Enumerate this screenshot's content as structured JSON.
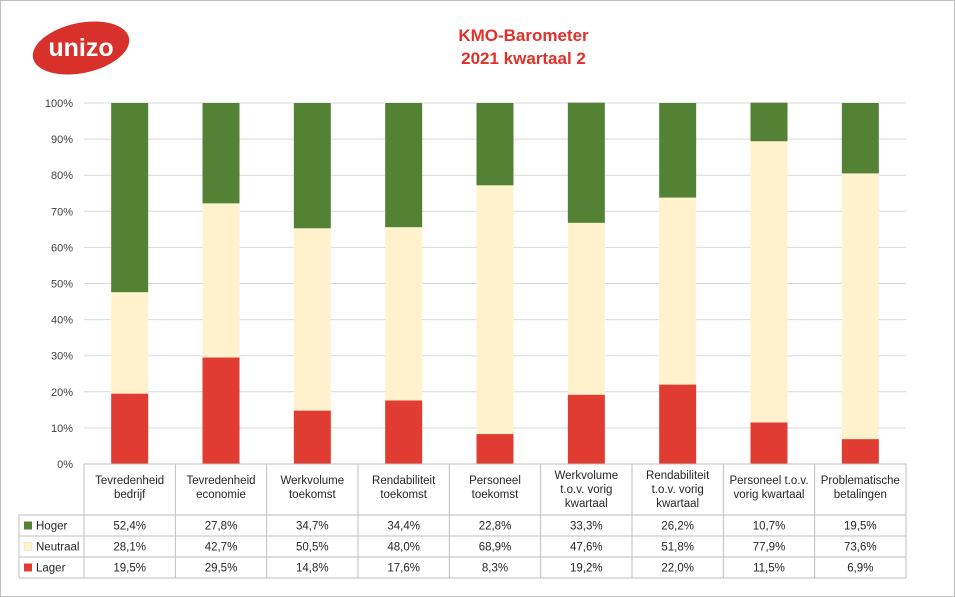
{
  "logo": {
    "text": "unizo",
    "color": "#d8302a"
  },
  "title": {
    "line1": "KMO-Barometer",
    "line2": "2021 kwartaal 2"
  },
  "chart_data": {
    "type": "bar",
    "stacked": true,
    "percent": true,
    "title": "KMO-Barometer 2021 kwartaal 2",
    "ylim": [
      0,
      100
    ],
    "yticks": [
      "0%",
      "10%",
      "20%",
      "30%",
      "40%",
      "50%",
      "60%",
      "70%",
      "80%",
      "90%",
      "100%"
    ],
    "categories": [
      [
        "Tevredenheid",
        "bedrijf"
      ],
      [
        "Tevredenheid",
        "economie"
      ],
      [
        "Werkvolume",
        "toekomst"
      ],
      [
        "Rendabiliteit",
        "toekomst"
      ],
      [
        "Personeel",
        "toekomst"
      ],
      [
        "Werkvolume",
        "t.o.v. vorig",
        "kwartaal"
      ],
      [
        "Rendabiliteit",
        "t.o.v. vorig",
        "kwartaal"
      ],
      [
        "Personeel t.o.v.",
        "vorig kwartaal"
      ],
      [
        "Problematische",
        "betalingen"
      ]
    ],
    "series": [
      {
        "name": "Hoger",
        "color": "#548235",
        "values": [
          52.4,
          27.8,
          34.7,
          34.4,
          22.8,
          33.3,
          26.2,
          10.7,
          19.5
        ],
        "labels": [
          "52,4%",
          "27,8%",
          "34,7%",
          "34,4%",
          "22,8%",
          "33,3%",
          "26,2%",
          "10,7%",
          "19,5%"
        ]
      },
      {
        "name": "Neutraal",
        "color": "#fff2cc",
        "values": [
          28.1,
          42.7,
          50.5,
          48.0,
          68.9,
          47.6,
          51.8,
          77.9,
          73.6
        ],
        "labels": [
          "28,1%",
          "42,7%",
          "50,5%",
          "48,0%",
          "68,9%",
          "47,6%",
          "51,8%",
          "77,9%",
          "73,6%"
        ]
      },
      {
        "name": "Lager",
        "color": "#e03c31",
        "values": [
          19.5,
          29.5,
          14.8,
          17.6,
          8.3,
          19.2,
          22.0,
          11.5,
          6.9
        ],
        "labels": [
          "19,5%",
          "29,5%",
          "14,8%",
          "17,6%",
          "8,3%",
          "19,2%",
          "22,0%",
          "11,5%",
          "6,9%"
        ]
      }
    ]
  }
}
